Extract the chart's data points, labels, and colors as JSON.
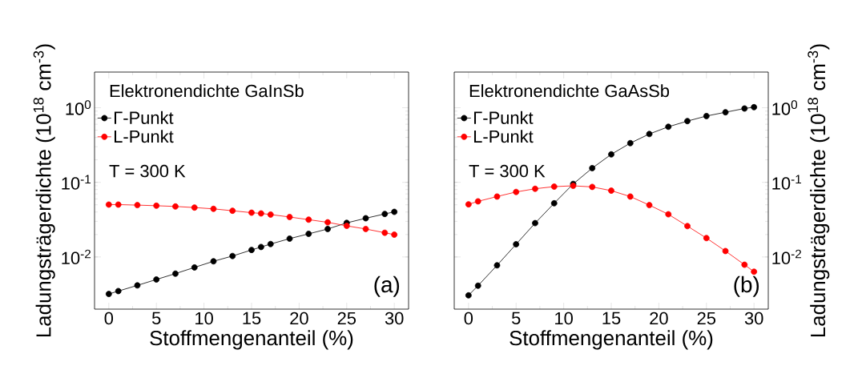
{
  "chart_data": [
    {
      "type": "line",
      "legend_title": "Elektronendichte GaInSb",
      "xlabel": "Stoffmengenanteil (%)",
      "ylabel": "Ladungsträgerdichte (10$^{18}$ cm$^{-3}$)",
      "x": [
        0,
        1,
        3,
        5,
        7,
        9,
        11,
        13,
        15,
        16,
        17,
        19,
        21,
        23,
        25,
        27,
        29,
        30
      ],
      "series": [
        {
          "name": "Γ-Punkt",
          "color": "#000000",
          "values": [
            0.00319,
            0.00349,
            0.00416,
            0.00499,
            0.00598,
            0.00724,
            0.00875,
            0.0103,
            0.0124,
            0.0136,
            0.0149,
            0.0176,
            0.0204,
            0.0237,
            0.0286,
            0.033,
            0.0377,
            0.0402
          ]
        },
        {
          "name": "L-Punkt",
          "color": "#ff0000",
          "values": [
            0.0503,
            0.0503,
            0.0495,
            0.0486,
            0.0475,
            0.0459,
            0.0441,
            0.0416,
            0.0392,
            0.0383,
            0.037,
            0.0343,
            0.0316,
            0.0291,
            0.0261,
            0.0237,
            0.0211,
            0.0199
          ]
        }
      ],
      "xlim": [
        -1.5,
        31.5
      ],
      "ylim": [
        0.002,
        3
      ],
      "xticks": [
        0,
        5,
        10,
        15,
        20,
        25,
        30
      ],
      "yticks": [
        {
          "value": 0.01,
          "label": "10$^{-2}$"
        },
        {
          "value": 0.1,
          "label": "10$^{-1}$"
        },
        {
          "value": 1,
          "label": "10$^{0}$"
        }
      ],
      "log": "y",
      "legend": "top left",
      "marker": "circle",
      "annotations": [
        "T = 300 K",
        "(a)"
      ]
    },
    {
      "type": "line",
      "legend_title": "Elektronendichte GaAsSb",
      "xlabel": "Stoffmengenanteil (%)",
      "ylabel": "Ladungsträgerdichte (10$^{18}$ cm$^{-3}$)",
      "x": [
        0,
        1,
        3,
        5,
        7,
        9,
        11,
        13,
        15,
        17,
        19,
        21,
        23,
        25,
        27,
        29,
        30
      ],
      "series": [
        {
          "name": "Γ-Punkt",
          "color": "#000000",
          "values": [
            0.00306,
            0.00412,
            0.00773,
            0.0148,
            0.0284,
            0.0524,
            0.0951,
            0.155,
            0.237,
            0.335,
            0.444,
            0.555,
            0.661,
            0.773,
            0.869,
            0.975,
            1.016
          ]
        },
        {
          "name": "L-Punkt",
          "color": "#ff0000",
          "values": [
            0.0507,
            0.0556,
            0.0645,
            0.0743,
            0.082,
            0.0876,
            0.0898,
            0.0868,
            0.0773,
            0.0645,
            0.0495,
            0.0373,
            0.0259,
            0.0179,
            0.012,
            0.00787,
            0.00634
          ]
        }
      ],
      "xlim": [
        -1.5,
        31.5
      ],
      "ylim": [
        0.002,
        3
      ],
      "xticks": [
        0,
        5,
        10,
        15,
        20,
        25,
        30
      ],
      "yticks": [
        {
          "value": 0.01,
          "label": "10$^{-2}$"
        },
        {
          "value": 0.1,
          "label": "10$^{-1}$"
        },
        {
          "value": 1,
          "label": "10$^{0}$"
        }
      ],
      "log": "y",
      "legend": "top left",
      "marker": "circle",
      "annotations": [
        "T = 300 K",
        "(b)"
      ]
    }
  ]
}
